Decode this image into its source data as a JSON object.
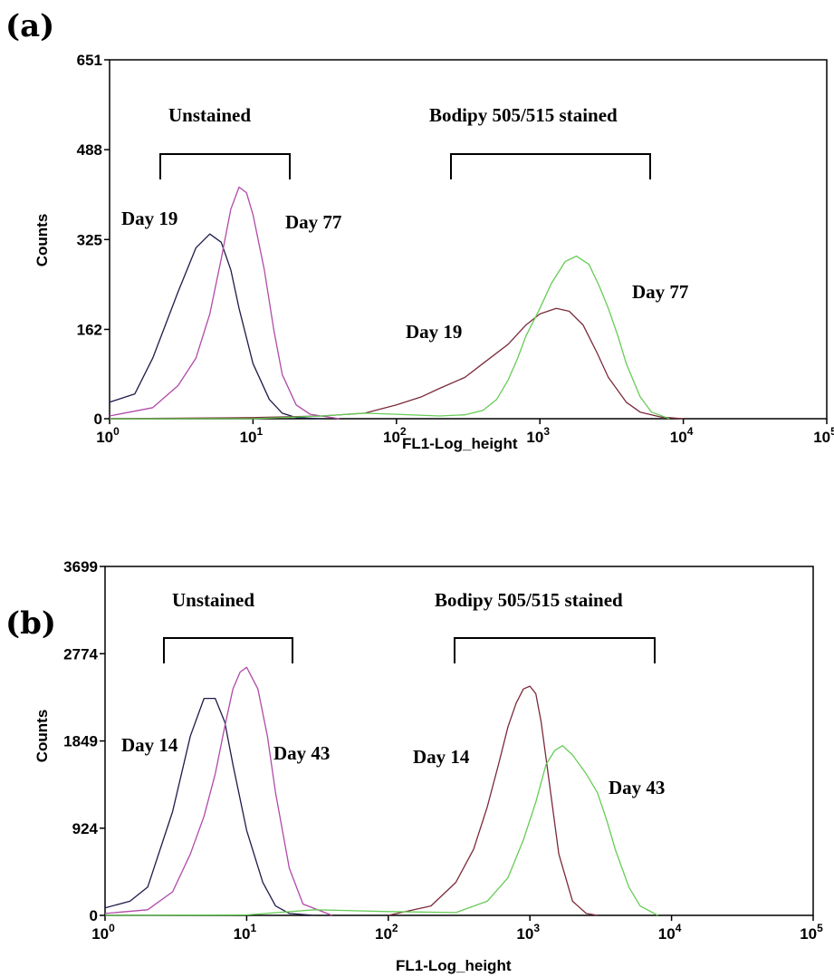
{
  "panels": [
    {
      "label": "(a)"
    },
    {
      "label": "(b)"
    }
  ],
  "colors": {
    "unstained_early": "#1c1c4a",
    "unstained_late": "#b04aa8",
    "stained_early": "#7a2a3a",
    "stained_late": "#66cc55"
  },
  "chart_data": [
    {
      "type": "line",
      "xscale": "log",
      "xlim": [
        1,
        100000
      ],
      "ylim": [
        0,
        651
      ],
      "yticks": [
        0,
        162,
        325,
        488,
        651
      ],
      "xticks": [
        1,
        10,
        100,
        1000,
        10000,
        100000
      ],
      "xticklabels": [
        [
          "10",
          "0"
        ],
        [
          "10",
          "1"
        ],
        [
          "10",
          "2"
        ],
        [
          "10",
          "3"
        ],
        [
          "10",
          "4"
        ],
        [
          "10",
          "5"
        ]
      ],
      "xlabel": "FL1-Log_height",
      "ylabel": "Counts",
      "annotations": {
        "unstained": "Unstained",
        "stained": "Bodipy 505/515 stained",
        "unstained_day_early": "Day 19",
        "unstained_day_late": "Day 77",
        "stained_day_early": "Day 19",
        "stained_day_late": "Day 77"
      },
      "series": [
        {
          "x": [
            1.0,
            1.5,
            2.0,
            3.0,
            4.0,
            5.0,
            6.0,
            7.0,
            8.0,
            10.0,
            13.0,
            16.0,
            20.0,
            30.0
          ],
          "y": [
            30,
            45,
            110,
            230,
            310,
            335,
            320,
            270,
            200,
            100,
            35,
            10,
            2,
            0
          ]
        },
        {
          "x": [
            1.0,
            2.0,
            3.0,
            4.0,
            5.0,
            6.0,
            7.0,
            8.0,
            9.0,
            10.0,
            12.0,
            14.0,
            16.0,
            20.0,
            25.0,
            40.0
          ],
          "y": [
            5,
            20,
            60,
            110,
            190,
            290,
            380,
            420,
            410,
            370,
            270,
            160,
            80,
            25,
            8,
            0
          ]
        },
        {
          "x": [
            1.0,
            10.0,
            30.0,
            60.0,
            100.0,
            150.0,
            200.0,
            300.0,
            400.0,
            600.0,
            800.0,
            1000.0,
            1300.0,
            1600.0,
            2000.0,
            2500.0,
            3000.0,
            4000.0,
            5000.0,
            7000.0,
            10000.0
          ],
          "y": [
            0,
            2,
            5,
            10,
            25,
            40,
            55,
            75,
            100,
            135,
            170,
            190,
            200,
            195,
            170,
            120,
            75,
            30,
            12,
            3,
            0
          ]
        },
        {
          "x": [
            1.0,
            10.0,
            30.0,
            60.0,
            100.0,
            200.0,
            300.0,
            400.0,
            500.0,
            600.0,
            700.0,
            800.0,
            1000.0,
            1200.0,
            1500.0,
            1800.0,
            2200.0,
            2600.0,
            3000.0,
            3500.0,
            4000.0,
            5000.0,
            6000.0,
            8000.0
          ],
          "y": [
            0,
            0,
            5,
            10,
            8,
            5,
            7,
            15,
            35,
            70,
            110,
            150,
            200,
            245,
            285,
            295,
            280,
            240,
            200,
            150,
            100,
            40,
            12,
            0
          ]
        }
      ]
    },
    {
      "type": "line",
      "xscale": "log",
      "xlim": [
        1,
        100000
      ],
      "ylim": [
        0,
        3699
      ],
      "yticks": [
        0,
        924,
        1849,
        2774,
        3699
      ],
      "xticks": [
        1,
        10,
        100,
        1000,
        10000,
        100000
      ],
      "xticklabels": [
        [
          "10",
          "0"
        ],
        [
          "10",
          "1"
        ],
        [
          "10",
          "2"
        ],
        [
          "10",
          "3"
        ],
        [
          "10",
          "4"
        ],
        [
          "10",
          "5"
        ]
      ],
      "xlabel": "FL1-Log_height",
      "ylabel": "Counts",
      "annotations": {
        "unstained": "Unstained",
        "stained": "Bodipy 505/515 stained",
        "unstained_day_early": "Day 14",
        "unstained_day_late": "Day 43",
        "stained_day_early": "Day 14",
        "stained_day_late": "Day 43"
      },
      "series": [
        {
          "x": [
            1.0,
            1.5,
            2.0,
            3.0,
            4.0,
            5.0,
            6.0,
            7.0,
            8.0,
            10.0,
            13.0,
            16.0,
            20.0,
            30.0
          ],
          "y": [
            80,
            150,
            300,
            1100,
            1900,
            2300,
            2300,
            2050,
            1600,
            900,
            350,
            100,
            20,
            0
          ]
        },
        {
          "x": [
            1.0,
            2.0,
            3.0,
            4.0,
            5.0,
            6.0,
            7.0,
            8.0,
            9.0,
            10.0,
            12.0,
            14.0,
            16.0,
            20.0,
            25.0,
            40.0
          ],
          "y": [
            20,
            60,
            250,
            650,
            1050,
            1500,
            2000,
            2400,
            2580,
            2630,
            2400,
            1900,
            1300,
            500,
            120,
            0
          ]
        },
        {
          "x": [
            100.0,
            200.0,
            300.0,
            400.0,
            500.0,
            600.0,
            700.0,
            800.0,
            900.0,
            1000.0,
            1100.0,
            1200.0,
            1400.0,
            1600.0,
            2000.0,
            2500.0,
            3000.0
          ],
          "y": [
            0,
            100,
            350,
            700,
            1150,
            1600,
            2000,
            2250,
            2400,
            2430,
            2350,
            2050,
            1300,
            650,
            150,
            20,
            0
          ]
        },
        {
          "x": [
            1.0,
            10.0,
            30.0,
            100.0,
            300.0,
            500.0,
            700.0,
            900.0,
            1100.0,
            1300.0,
            1500.0,
            1700.0,
            2000.0,
            2500.0,
            3000.0,
            3500.0,
            4000.0,
            5000.0,
            6000.0,
            8000.0
          ],
          "y": [
            0,
            5,
            60,
            40,
            30,
            150,
            400,
            800,
            1200,
            1600,
            1750,
            1800,
            1700,
            1500,
            1300,
            1000,
            700,
            300,
            100,
            0
          ]
        }
      ]
    }
  ]
}
